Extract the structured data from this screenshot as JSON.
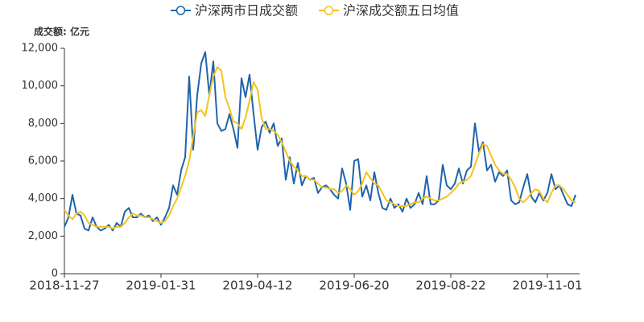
{
  "chart_data": {
    "type": "line",
    "y_unit_label": "成交额: 亿元",
    "categories": [
      "2018-11-27",
      null,
      null,
      null,
      null,
      null,
      null,
      null,
      null,
      null,
      null,
      null,
      null,
      null,
      null,
      null,
      null,
      null,
      null,
      null,
      null,
      null,
      null,
      null,
      "2019-01-31",
      null,
      null,
      null,
      null,
      null,
      null,
      null,
      null,
      null,
      null,
      null,
      null,
      null,
      null,
      null,
      null,
      null,
      null,
      null,
      null,
      null,
      null,
      null,
      "2019-04-12",
      null,
      null,
      null,
      null,
      null,
      null,
      null,
      null,
      null,
      null,
      null,
      null,
      null,
      null,
      null,
      null,
      null,
      null,
      null,
      null,
      null,
      null,
      null,
      "2019-06-20",
      null,
      null,
      null,
      null,
      null,
      null,
      null,
      null,
      null,
      null,
      null,
      null,
      null,
      null,
      null,
      null,
      null,
      null,
      null,
      null,
      null,
      null,
      null,
      "2019-08-22",
      null,
      null,
      null,
      null,
      null,
      null,
      null,
      null,
      null,
      null,
      null,
      null,
      null,
      null,
      null,
      null,
      null,
      null,
      null,
      null,
      null,
      null,
      null,
      "2019-11-01",
      null,
      null,
      null,
      null,
      null,
      null,
      null
    ],
    "series": [
      {
        "name": "沪深两市日成交额",
        "color": "#1f64ad",
        "values": [
          2500,
          3000,
          4200,
          3200,
          3100,
          2400,
          2300,
          3000,
          2500,
          2300,
          2400,
          2600,
          2300,
          2700,
          2500,
          3300,
          3500,
          3000,
          3000,
          3200,
          3000,
          3100,
          2800,
          3000,
          2600,
          3000,
          3500,
          4700,
          4200,
          5500,
          6200,
          10500,
          6600,
          9500,
          11200,
          11800,
          9500,
          11300,
          8000,
          7600,
          7700,
          8500,
          7700,
          6700,
          10400,
          9400,
          10600,
          8500,
          6600,
          7800,
          8100,
          7500,
          8000,
          6800,
          7200,
          5000,
          6200,
          4800,
          5900,
          4700,
          5200,
          5000,
          5100,
          4300,
          4600,
          4700,
          4500,
          4200,
          4000,
          5600,
          4800,
          3400,
          6000,
          6100,
          4100,
          4700,
          3900,
          5400,
          4300,
          3500,
          3400,
          4000,
          3500,
          3700,
          3300,
          4000,
          3500,
          3700,
          4300,
          3700,
          5200,
          3700,
          3700,
          3900,
          5800,
          4700,
          4500,
          4800,
          5600,
          4800,
          5500,
          5700,
          8000,
          6500,
          7000,
          5500,
          5800,
          4900,
          5400,
          5200,
          5500,
          3900,
          3700,
          3800,
          4600,
          5300,
          4100,
          3800,
          4300,
          3900,
          4300,
          5300,
          4500,
          4700,
          4200,
          3700,
          3600,
          4200
        ]
      },
      {
        "name": "沪深成交额五日均值",
        "color": "#f5c21b",
        "values": [
          3400,
          3100,
          2900,
          3200,
          3300,
          3100,
          2700,
          2600,
          2500,
          2500,
          2500,
          2500,
          2400,
          2500,
          2500,
          2700,
          3000,
          3200,
          3100,
          3100,
          3000,
          3000,
          2900,
          2800,
          2700,
          2800,
          3100,
          3600,
          4000,
          4600,
          5200,
          6000,
          7300,
          8600,
          8700,
          8400,
          9500,
          10500,
          11000,
          10800,
          9400,
          8800,
          8100,
          8000,
          7700,
          8300,
          9200,
          10200,
          9800,
          8300,
          7700,
          7700,
          7600,
          7400,
          7000,
          6500,
          6000,
          5700,
          5500,
          5200,
          5200,
          5000,
          5000,
          4800,
          4600,
          4600,
          4500,
          4500,
          4300,
          4400,
          4700,
          4500,
          4200,
          4400,
          4800,
          5400,
          5100,
          4800,
          4700,
          4300,
          3900,
          3800,
          3700,
          3600,
          3600,
          3600,
          3700,
          3800,
          3800,
          4000,
          4100,
          4000,
          3900,
          3900,
          4000,
          4100,
          4300,
          4500,
          4800,
          4900,
          5000,
          5200,
          5800,
          6400,
          6900,
          6800,
          6300,
          5800,
          5500,
          5300,
          5300,
          5000,
          4600,
          4000,
          3800,
          4000,
          4300,
          4500,
          4400,
          4000,
          3800,
          4300,
          4700,
          4700,
          4500,
          4200,
          3900,
          3800
        ]
      }
    ],
    "ylim": [
      0,
      12000
    ],
    "yticks": [
      0,
      {
        "value": 2000,
        "label": "2,000"
      },
      {
        "value": 4000,
        "label": "4,000"
      },
      {
        "value": 6000,
        "label": "6,000"
      },
      {
        "value": 8000,
        "label": "8,000"
      },
      {
        "value": 10000,
        "label": "10,000"
      },
      {
        "value": 12000,
        "label": "12,000"
      }
    ],
    "legend": "top"
  }
}
